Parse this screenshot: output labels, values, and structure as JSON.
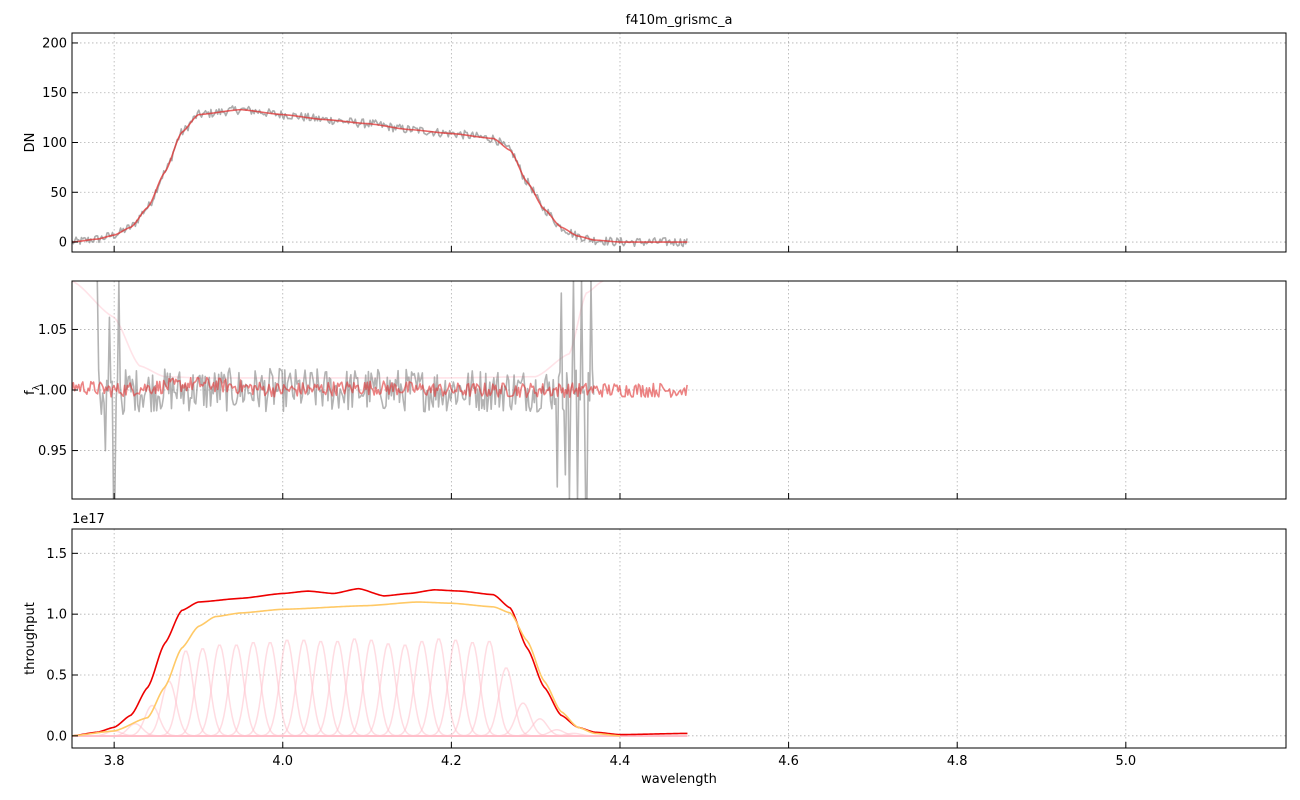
{
  "chart_data": {
    "type": "line",
    "title": "f410m_grismc_a",
    "xlabel": "wavelength",
    "xlim": [
      3.75,
      5.19
    ],
    "xticks": [
      "3.8",
      "4.0",
      "4.2",
      "4.4",
      "4.6",
      "4.8",
      "5.0"
    ],
    "grid": true,
    "panels": [
      {
        "id": "counts",
        "ylabel": "DN",
        "ylim": [
          -10,
          210
        ],
        "yticks": [
          "0",
          "50",
          "100",
          "150",
          "200"
        ],
        "series": [
          {
            "color": "#808080",
            "opacity": 0.65,
            "style": "noisy",
            "noise": 4.5,
            "x": [
              3.75,
              3.78,
              3.8,
              3.82,
              3.84,
              3.86,
              3.88,
              3.9,
              3.95,
              4.0,
              4.05,
              4.1,
              4.15,
              4.2,
              4.25,
              4.27,
              4.29,
              4.31,
              4.33,
              4.35,
              4.37,
              4.4,
              4.44,
              4.48
            ],
            "y": [
              0,
              3,
              7,
              15,
              35,
              70,
              110,
              128,
              133,
              128,
              123,
              119,
              113,
              109,
              104,
              92,
              60,
              33,
              15,
              6,
              2,
              0,
              0,
              0
            ]
          },
          {
            "color": "#e03030",
            "opacity": 0.75,
            "style": "smooth",
            "x": [
              3.75,
              3.78,
              3.8,
              3.82,
              3.84,
              3.86,
              3.88,
              3.9,
              3.95,
              4.0,
              4.05,
              4.1,
              4.15,
              4.2,
              4.25,
              4.27,
              4.29,
              4.31,
              4.33,
              4.35,
              4.37,
              4.4,
              4.44,
              4.48
            ],
            "y": [
              0,
              3,
              7,
              15,
              35,
              70,
              110,
              128,
              133,
              128,
              123,
              119,
              113,
              109,
              104,
              92,
              60,
              33,
              15,
              6,
              2,
              0,
              0,
              0
            ]
          }
        ]
      },
      {
        "id": "ratio",
        "ylabel": "f_λ",
        "ylim": [
          0.91,
          1.09
        ],
        "yticks": [
          "0.95",
          "1.00",
          "1.05"
        ],
        "series": [
          {
            "color": "#ffc0cb",
            "opacity": 0.45,
            "style": "smooth",
            "x": [
              3.75,
              3.8,
              3.83,
              3.86,
              3.9,
              4.0,
              4.1,
              4.2,
              4.3,
              4.34,
              4.36,
              4.38
            ],
            "y": [
              1.09,
              1.06,
              1.02,
              1.011,
              1.01,
              1.01,
              1.01,
              1.01,
              1.011,
              1.03,
              1.08,
              1.09
            ]
          },
          {
            "color": "#808080",
            "opacity": 0.6,
            "style": "noisy",
            "noise": 0.018,
            "x": [
              3.78,
              3.8,
              3.82,
              3.84,
              3.86,
              3.9,
              4.0,
              4.1,
              4.2,
              4.3,
              4.33,
              4.35,
              4.36,
              4.37
            ],
            "y": [
              1.0,
              1.0,
              1.0,
              1.0,
              1.0,
              1.0,
              1.0,
              1.0,
              1.0,
              1.0,
              1.0,
              1.0,
              1.0,
              1.0
            ],
            "spikes": [
              [
                3.78,
                1.09
              ],
              [
                3.785,
                0.98
              ],
              [
                3.79,
                0.95
              ],
              [
                3.795,
                1.06
              ],
              [
                3.8,
                0.91
              ],
              [
                3.805,
                1.09
              ],
              [
                3.81,
                0.98
              ],
              [
                4.325,
                0.92
              ],
              [
                4.33,
                1.08
              ],
              [
                4.335,
                0.93
              ],
              [
                4.34,
                0.91
              ],
              [
                4.345,
                1.09
              ],
              [
                4.35,
                0.91
              ],
              [
                4.355,
                1.09
              ],
              [
                4.36,
                0.91
              ],
              [
                4.365,
                1.09
              ],
              [
                4.37,
                1.02
              ]
            ]
          },
          {
            "color": "#e03030",
            "opacity": 0.6,
            "style": "noisy",
            "noise": 0.006,
            "x": [
              3.75,
              3.8,
              3.9,
              4.0,
              4.1,
              4.2,
              4.3,
              4.4,
              4.48
            ],
            "y": [
              1.003,
              1.0,
              1.005,
              1.0,
              1.002,
              1.0,
              1.0,
              1.0,
              1.0
            ]
          }
        ]
      },
      {
        "id": "throughput",
        "ylabel": "throughput",
        "offset_text": "1e17",
        "ylim": [
          -0.1,
          1.7
        ],
        "yticks": [
          "0.0",
          "0.5",
          "1.0",
          "1.5"
        ],
        "series": [
          {
            "color": "#ee0000",
            "opacity": 1.0,
            "style": "smooth",
            "x": [
              3.75,
              3.78,
              3.8,
              3.82,
              3.84,
              3.86,
              3.88,
              3.9,
              3.95,
              4.0,
              4.03,
              4.06,
              4.09,
              4.12,
              4.15,
              4.18,
              4.21,
              4.25,
              4.27,
              4.29,
              4.31,
              4.33,
              4.35,
              4.37,
              4.4,
              4.48
            ],
            "y": [
              0,
              0.03,
              0.07,
              0.17,
              0.4,
              0.76,
              1.03,
              1.1,
              1.13,
              1.17,
              1.19,
              1.17,
              1.21,
              1.15,
              1.17,
              1.2,
              1.19,
              1.16,
              1.05,
              0.72,
              0.4,
              0.17,
              0.07,
              0.03,
              0.01,
              0.02
            ]
          },
          {
            "color": "#ffc966",
            "opacity": 1.0,
            "style": "smooth",
            "x": [
              3.75,
              3.8,
              3.84,
              3.86,
              3.88,
              3.9,
              3.92,
              3.95,
              4.0,
              4.1,
              4.16,
              4.2,
              4.25,
              4.27,
              4.29,
              4.31,
              4.33,
              4.35,
              4.37,
              4.4
            ],
            "y": [
              0,
              0.04,
              0.15,
              0.4,
              0.72,
              0.9,
              0.98,
              1.01,
              1.04,
              1.07,
              1.1,
              1.09,
              1.06,
              1.01,
              0.78,
              0.45,
              0.2,
              0.07,
              0.02,
              0
            ]
          }
        ],
        "components": {
          "color": "#ffc0cb",
          "opacity": 0.55,
          "sigma": 0.0085,
          "centers": [
            3.8,
            3.825,
            3.845,
            3.865,
            3.885,
            3.905,
            3.925,
            3.945,
            3.965,
            3.985,
            4.005,
            4.025,
            4.045,
            4.065,
            4.085,
            4.105,
            4.125,
            4.145,
            4.165,
            4.185,
            4.205,
            4.225,
            4.245,
            4.265,
            4.285,
            4.305,
            4.325,
            4.345
          ],
          "peaks": [
            0.04,
            0.1,
            0.25,
            0.45,
            0.7,
            0.72,
            0.75,
            0.75,
            0.77,
            0.77,
            0.79,
            0.79,
            0.78,
            0.78,
            0.8,
            0.79,
            0.76,
            0.75,
            0.78,
            0.8,
            0.79,
            0.77,
            0.78,
            0.56,
            0.27,
            0.14,
            0.05,
            0.02
          ]
        }
      }
    ]
  }
}
